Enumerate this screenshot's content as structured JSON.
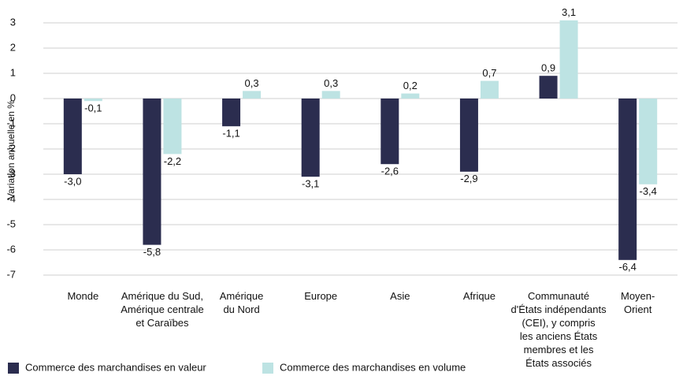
{
  "chart_data": {
    "type": "bar",
    "y_label": "Variation annuelle en %",
    "categories": [
      "Monde",
      "Amérique du Sud,\nAmérique centrale\net Caraïbes",
      "Amérique\ndu Nord",
      "Europe",
      "Asie",
      "Afrique",
      "Communauté\nd'États indépendants\n(CEI), y compris\nles anciens États\nmembres et les\nÉtats associés",
      "Moyen-\nOrient"
    ],
    "series": [
      {
        "name": "Commerce des marchandises en valeur",
        "color": "#2b2d4f",
        "values": [
          -3.0,
          -5.8,
          -1.1,
          -3.1,
          -2.6,
          -2.9,
          0.9,
          -6.4
        ],
        "value_labels": [
          "-3,0",
          "-5,8",
          "-1,1",
          "-3,1",
          "-2,6",
          "-2,9",
          "0,9",
          "-6,4"
        ]
      },
      {
        "name": "Commerce des marchandises en volume",
        "color": "#bde3e3",
        "values": [
          -0.1,
          -2.2,
          0.3,
          0.3,
          0.2,
          0.7,
          3.1,
          -3.4
        ],
        "value_labels": [
          "-0,1",
          "-2,2",
          "0,3",
          "0,3",
          "0,2",
          "0,7",
          "3,1",
          "-3,4"
        ]
      }
    ],
    "ylim": [
      -7,
      3.3
    ],
    "yticks": [
      3,
      2,
      1,
      0,
      -1,
      -2,
      -3,
      -4,
      -5,
      -6,
      -7
    ],
    "grid": true
  }
}
